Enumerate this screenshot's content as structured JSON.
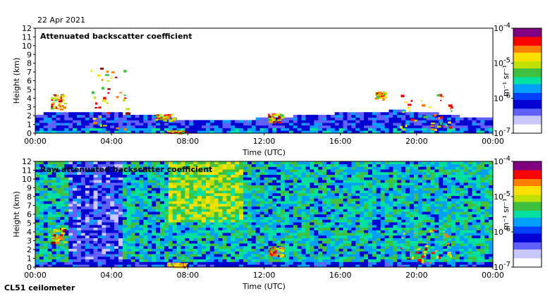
{
  "date": "22 Apr 2021",
  "instrument": "CL51 ceilometer",
  "colors": {
    "scale": [
      "#ffffff",
      "#c8c8ff",
      "#6060ff",
      "#0000d0",
      "#00a0ff",
      "#00e0a0",
      "#40c040",
      "#c0e000",
      "#ffe000",
      "#ff8000",
      "#ff0000",
      "#900000"
    ]
  },
  "colorbar": {
    "unit": "m⁻¹ sr⁻¹",
    "ticks": [
      {
        "base": "10",
        "exp": "-4",
        "value": 0.0001
      },
      {
        "base": "10",
        "exp": "-5",
        "value": 1e-05
      },
      {
        "base": "10",
        "exp": "-6",
        "value": 1e-06
      },
      {
        "base": "10",
        "exp": "-7",
        "value": 1e-07
      }
    ],
    "scale": "log"
  },
  "chart_data": [
    {
      "type": "heatmap",
      "title": "Attenuated backscatter coefficient",
      "xlabel": "Time (UTC)",
      "ylabel": "Height (km)",
      "xticks": [
        "00:00",
        "04:00",
        "08:00",
        "12:00",
        "16:00",
        "20:00",
        "00:00"
      ],
      "yticks": [
        "0",
        "1",
        "2",
        "3",
        "4",
        "5",
        "6",
        "7",
        "8",
        "9",
        "10",
        "11",
        "12"
      ],
      "xlim": [
        0,
        24
      ],
      "ylim": [
        0,
        12
      ],
      "zscale": "log",
      "zlim": [
        1e-07,
        0.0001
      ],
      "boundary_layer_top_km": [
        [
          0,
          2.2
        ],
        [
          1,
          2.3
        ],
        [
          2,
          2.5
        ],
        [
          3,
          2.4
        ],
        [
          4,
          2.5
        ],
        [
          5,
          2.0
        ],
        [
          6,
          2.0
        ],
        [
          7,
          1.9
        ],
        [
          8,
          1.4
        ],
        [
          9,
          1.5
        ],
        [
          10,
          1.5
        ],
        [
          11,
          1.6
        ],
        [
          12,
          1.7
        ],
        [
          13,
          1.9
        ],
        [
          14,
          2.0
        ],
        [
          15,
          2.1
        ],
        [
          16,
          2.3
        ],
        [
          17,
          2.4
        ],
        [
          18,
          2.5
        ],
        [
          19,
          2.6
        ],
        [
          20,
          2.5
        ],
        [
          21,
          2.3
        ],
        [
          22,
          2.0
        ],
        [
          23,
          1.8
        ],
        [
          24,
          1.7
        ]
      ],
      "cloud_layers": [
        {
          "t0": 0.8,
          "t1": 1.5,
          "h0": 2.8,
          "h1": 4.5
        },
        {
          "t0": 2.9,
          "t1": 4.9,
          "h0": 0.2,
          "h1": 7.8
        },
        {
          "t0": 6.2,
          "t1": 7.2,
          "h0": 1.5,
          "h1": 2.2
        },
        {
          "t0": 6.9,
          "t1": 7.9,
          "h0": 0.1,
          "h1": 0.35
        },
        {
          "t0": 12.2,
          "t1": 12.9,
          "h0": 1.3,
          "h1": 2.3
        },
        {
          "t0": 17.8,
          "t1": 18.3,
          "h0": 4.0,
          "h1": 4.8
        },
        {
          "t0": 19.1,
          "t1": 21.8,
          "h0": 0.5,
          "h1": 4.5
        }
      ]
    },
    {
      "type": "heatmap",
      "title": "Raw attenuated backscatter coefficient",
      "xlabel": "Time (UTC)",
      "ylabel": "Height (km)",
      "xticks": [
        "00:00",
        "04:00",
        "08:00",
        "12:00",
        "16:00",
        "20:00",
        "00:00"
      ],
      "yticks": [
        "0",
        "1",
        "2",
        "3",
        "4",
        "5",
        "6",
        "7",
        "8",
        "9",
        "10",
        "11",
        "12"
      ],
      "xlim": [
        0,
        24
      ],
      "ylim": [
        0,
        12
      ],
      "zscale": "log",
      "zlim": [
        1e-07,
        0.0001
      ],
      "cloud_layers": [
        {
          "t0": 0.8,
          "t1": 1.5,
          "h0": 2.8,
          "h1": 4.5
        },
        {
          "t0": 6.9,
          "t1": 7.9,
          "h0": 0.1,
          "h1": 0.5
        },
        {
          "t0": 12.2,
          "t1": 12.9,
          "h0": 1.3,
          "h1": 2.3
        },
        {
          "t0": 19.1,
          "t1": 21.8,
          "h0": 0.5,
          "h1": 4.5
        }
      ]
    }
  ]
}
